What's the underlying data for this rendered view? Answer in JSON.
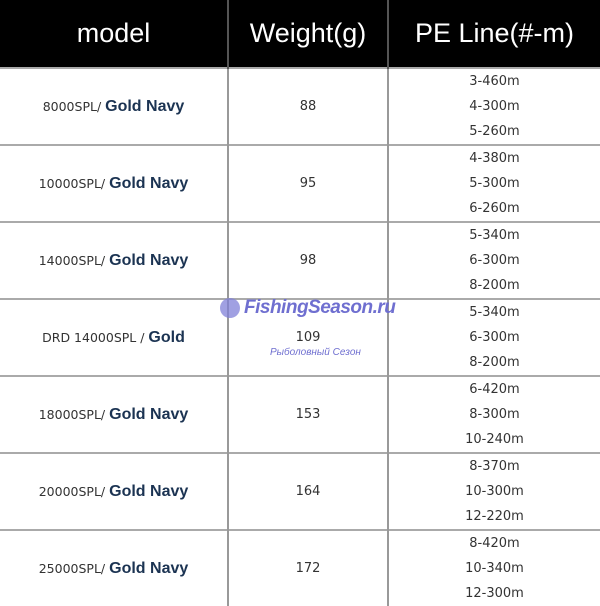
{
  "headers": [
    "model",
    "Weight(g)",
    "PE Line(#-m)"
  ],
  "rows": [
    {
      "prefix": "8000SPL/ ",
      "color": "Gold Navy",
      "weight": "88",
      "pe": [
        "3-460m",
        "4-300m",
        "5-260m"
      ]
    },
    {
      "prefix": "10000SPL/ ",
      "color": "Gold Navy",
      "weight": "95",
      "pe": [
        "4-380m",
        "5-300m",
        "6-260m"
      ]
    },
    {
      "prefix": "14000SPL/ ",
      "color": "Gold Navy",
      "weight": "98",
      "pe": [
        "5-340m",
        "6-300m",
        "8-200m"
      ]
    },
    {
      "prefix": "DRD 14000SPL / ",
      "color": "Gold",
      "weight": "109",
      "pe": [
        "5-340m",
        "6-300m",
        "8-200m"
      ]
    },
    {
      "prefix": "18000SPL/ ",
      "color": "Gold Navy",
      "weight": "153",
      "pe": [
        "6-420m",
        "8-300m",
        "10-240m"
      ]
    },
    {
      "prefix": "20000SPL/ ",
      "color": "Gold Navy",
      "weight": "164",
      "pe": [
        "8-370m",
        "10-300m",
        "12-220m"
      ]
    },
    {
      "prefix": "25000SPL/ ",
      "color": "Gold Navy",
      "weight": "172",
      "pe": [
        "8-420m",
        "10-340m",
        "12-300m"
      ]
    }
  ],
  "watermark": {
    "title": "FishingSeason.ru",
    "subtitle": "Рыболовный Сезон"
  },
  "colors": {
    "header_bg": "#000000",
    "color_name": "#1b3352",
    "watermark": "#6f6fd0"
  }
}
